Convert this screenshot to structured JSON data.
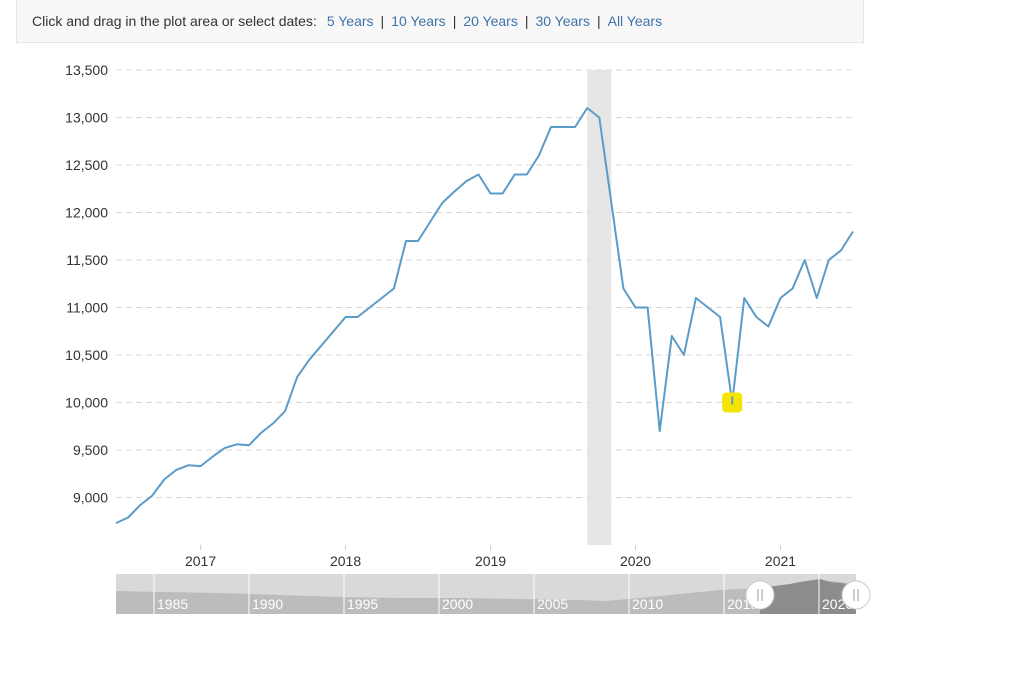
{
  "range_selector": {
    "prompt": "Click and drag in the plot area or select dates:",
    "options": [
      "5 Years",
      "10 Years",
      "20 Years",
      "30 Years",
      "All Years"
    ],
    "separator": "|"
  },
  "colors": {
    "line": "#5b9bc8",
    "recession_band": "#e6e6e6",
    "marker": "#f5e400",
    "grid": "#d8d8d8",
    "navigator_bg": "#d9d9d9",
    "navigator_series": "#bcbcbc",
    "navigator_selected": "#8c8c8c"
  },
  "chart_data": {
    "type": "line",
    "title": "",
    "xlabel": "",
    "ylabel": "",
    "ylim": [
      8500,
      13500
    ],
    "yticks": [
      9000,
      9500,
      10000,
      10500,
      11000,
      11500,
      12000,
      12500,
      13000,
      13500
    ],
    "ytick_labels": [
      "9,000",
      "9,500",
      "10,000",
      "10,500",
      "11,000",
      "11,500",
      "12,000",
      "12,500",
      "13,000",
      "13,500"
    ],
    "xlim": [
      "2016-06",
      "2021-07"
    ],
    "xticks": [
      "2017",
      "2018",
      "2019",
      "2020",
      "2021"
    ],
    "grid": "horizontal dashed",
    "shaded_band": {
      "from": "2019-09",
      "to": "2019-11"
    },
    "highlight_point": {
      "x": "2020-09",
      "y": 10000
    },
    "series": [
      {
        "x": [
          "2016-06",
          "2016-07",
          "2016-08",
          "2016-09",
          "2016-10",
          "2016-11",
          "2016-12",
          "2017-01",
          "2017-02",
          "2017-03",
          "2017-04",
          "2017-05",
          "2017-06",
          "2017-07",
          "2017-08",
          "2017-09",
          "2017-10",
          "2017-11",
          "2017-12",
          "2018-01",
          "2018-02",
          "2018-03",
          "2018-04",
          "2018-05",
          "2018-06",
          "2018-07",
          "2018-08",
          "2018-09",
          "2018-10",
          "2018-11",
          "2018-12",
          "2019-01",
          "2019-02",
          "2019-03",
          "2019-04",
          "2019-05",
          "2019-06",
          "2019-07",
          "2019-08",
          "2019-09",
          "2019-10",
          "2019-11",
          "2019-12",
          "2020-01",
          "2020-02",
          "2020-03",
          "2020-04",
          "2020-05",
          "2020-06",
          "2020-07",
          "2020-08",
          "2020-09",
          "2020-10",
          "2020-11",
          "2020-12",
          "2021-01",
          "2021-02",
          "2021-03",
          "2021-04",
          "2021-05",
          "2021-06",
          "2021-07"
        ],
        "values": [
          8730,
          8790,
          8920,
          9020,
          9190,
          9290,
          9340,
          9330,
          9430,
          9520,
          9560,
          9550,
          9680,
          9780,
          9910,
          10270,
          10450,
          10600,
          10750,
          10900,
          10900,
          11000,
          11100,
          11200,
          11700,
          11700,
          11900,
          12100,
          12220,
          12330,
          12400,
          12200,
          12200,
          12400,
          12400,
          12600,
          12900,
          12900,
          12900,
          13100,
          13000,
          12100,
          11200,
          11000,
          11000,
          9700,
          10700,
          10500,
          11100,
          11000,
          10900,
          10000,
          11100,
          10900,
          10800,
          11100,
          11200,
          11500,
          11100,
          11500,
          11600,
          11800
        ]
      }
    ]
  },
  "navigator": {
    "year_labels": [
      "1985",
      "1990",
      "1995",
      "2000",
      "2005",
      "2010",
      "2015",
      "2020"
    ]
  }
}
